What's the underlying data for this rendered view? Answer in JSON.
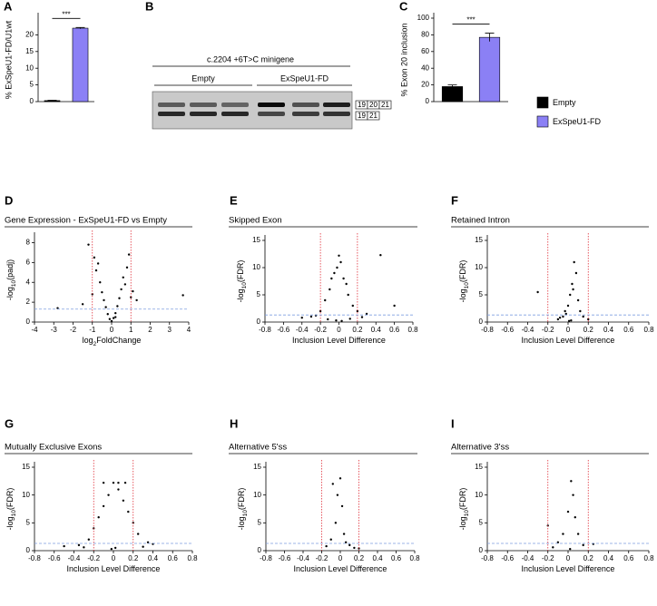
{
  "chart_data": [
    {
      "panel": "A",
      "type": "bar",
      "ylabel": "% ExSpeU1-FD/U1wt",
      "ylim": [
        0,
        25
      ],
      "yticks": [
        0,
        5,
        10,
        15,
        20
      ],
      "significance": "***",
      "series": [
        {
          "color": "#000000",
          "values": [
            0.3
          ],
          "errors": [
            0.1
          ]
        },
        {
          "color": "#8b80f5",
          "values": [
            22
          ],
          "errors": [
            0.2
          ]
        }
      ]
    },
    {
      "panel": "B",
      "type": "gel",
      "title": "c.2204 +6T>C minigene",
      "groups": [
        "Empty",
        "ExSpeU1-FD"
      ],
      "exons_top": [
        "19",
        "20",
        "21"
      ],
      "exons_bottom": [
        "19",
        "21"
      ]
    },
    {
      "panel": "C",
      "type": "bar",
      "ylabel": "% Exon 20 inclusion",
      "ylim": [
        0,
        100
      ],
      "yticks": [
        0,
        20,
        40,
        60,
        80,
        100
      ],
      "significance": "***",
      "legend": "right",
      "series": [
        {
          "name": "Empty",
          "color": "#000000",
          "values": [
            18
          ],
          "errors": [
            2
          ]
        },
        {
          "name": "ExSpeU1-FD",
          "color": "#8b80f5",
          "values": [
            77
          ],
          "errors": [
            5
          ]
        }
      ]
    },
    {
      "panel": "D",
      "type": "scatter",
      "title": "Gene Expression - ExSpeU1-FD vs Empty",
      "xlabel": [
        "log",
        "2",
        "FoldChange"
      ],
      "ylabel": [
        "-log",
        "10",
        "(padj)"
      ],
      "xlim": [
        -4,
        4
      ],
      "xticks": [
        -4,
        -3,
        -2,
        -1,
        0,
        1,
        2,
        3,
        4
      ],
      "ylim": [
        0,
        8.5
      ],
      "yticks": [
        0,
        2,
        4,
        6,
        8
      ],
      "vlines": [
        -1,
        1
      ],
      "hline": 1.3,
      "x": [
        -1.2,
        -0.9,
        -0.8,
        -0.6,
        -0.5,
        -0.4,
        -0.3,
        -0.2,
        -0.1,
        0,
        0.1,
        0.2,
        0.3,
        0.4,
        0.5,
        0.6,
        0.8,
        0.9,
        1.1,
        1.3,
        -2.8,
        3.7,
        -1.5,
        0.7,
        -0.7,
        1.0,
        -1.0,
        0.2
      ],
      "y": [
        7.8,
        6.5,
        5.2,
        4,
        3,
        2.2,
        1.5,
        0.8,
        0.3,
        0.1,
        0.4,
        0.9,
        1.6,
        2.4,
        3.3,
        4.5,
        5.5,
        6.8,
        3.1,
        2.2,
        1.4,
        2.7,
        1.8,
        3.8,
        5.9,
        2.5,
        2.8,
        0.5
      ]
    },
    {
      "panel": "E",
      "type": "scatter",
      "title": "Skipped Exon",
      "xlabel": [
        "Inclusion Level Difference"
      ],
      "ylabel": [
        "-log",
        "10",
        "(FDR)"
      ],
      "xlim": [
        -0.8,
        0.8
      ],
      "xticks": [
        -0.8,
        -0.6,
        -0.4,
        -0.2,
        0,
        0.2,
        0.4,
        0.6,
        0.8
      ],
      "ylim": [
        0,
        15
      ],
      "yticks": [
        0,
        5,
        10,
        15
      ],
      "vlines": [
        -0.2,
        0.2
      ],
      "hline": 1.3,
      "x": [
        -0.3,
        -0.2,
        -0.15,
        -0.1,
        -0.08,
        -0.05,
        -0.02,
        0,
        0.02,
        0.05,
        0.08,
        0.1,
        0.15,
        0.2,
        0.3,
        0.45,
        0.6,
        -0.4,
        -0.25,
        0.25,
        -0.12,
        0.12,
        -0.03,
        0.03
      ],
      "y": [
        1,
        2,
        4,
        6,
        8,
        9,
        10,
        12.2,
        11,
        8,
        7,
        5,
        3,
        2,
        1.5,
        12.3,
        3,
        0.8,
        1.2,
        0.9,
        0.5,
        0.6,
        0.3,
        0.2
      ]
    },
    {
      "panel": "F",
      "type": "scatter",
      "title": "Retained Intron",
      "xlabel": [
        "Inclusion Level Difference"
      ],
      "ylabel": [
        "-log",
        "10",
        "(FDR)"
      ],
      "xlim": [
        -0.8,
        0.8
      ],
      "xticks": [
        -0.8,
        -0.6,
        -0.4,
        -0.2,
        0,
        0.2,
        0.4,
        0.6,
        0.8
      ],
      "ylim": [
        0,
        15
      ],
      "yticks": [
        0,
        5,
        10,
        15
      ],
      "vlines": [
        -0.2,
        0.2
      ],
      "hline": 1.3,
      "x": [
        -0.1,
        -0.05,
        -0.03,
        0,
        0.02,
        0.04,
        0.06,
        0.08,
        0.1,
        0.12,
        -0.02,
        0.05,
        0.03,
        -0.08,
        0.15,
        0.2,
        -0.3,
        0.01
      ],
      "y": [
        0.5,
        1,
        2,
        3,
        5,
        7,
        11,
        9,
        4,
        2,
        1.5,
        6,
        0.3,
        0.8,
        1,
        0.5,
        5.5,
        0.2
      ]
    },
    {
      "panel": "G",
      "type": "scatter",
      "title": "Mutually Exclusive Exons",
      "xlabel": [
        "Inclusion Level Difference"
      ],
      "ylabel": [
        "-log",
        "10",
        "(FDR)"
      ],
      "xlim": [
        -0.8,
        0.8
      ],
      "xticks": [
        -0.8,
        -0.6,
        -0.4,
        -0.2,
        0,
        0.2,
        0.4,
        0.6,
        0.8
      ],
      "ylim": [
        0,
        15
      ],
      "yticks": [
        0,
        5,
        10,
        15
      ],
      "vlines": [
        -0.2,
        0.2
      ],
      "hline": 1.3,
      "x": [
        -0.35,
        -0.25,
        -0.2,
        -0.15,
        -0.1,
        -0.05,
        0,
        0.05,
        0.1,
        0.15,
        0.2,
        0.25,
        0.35,
        -0.5,
        0.4,
        -0.1,
        0.05,
        -0.02,
        0.02,
        0.12,
        -0.3,
        0.3
      ],
      "y": [
        1,
        2,
        4,
        6,
        8,
        10,
        12.2,
        11,
        9,
        7,
        5,
        3,
        1.5,
        0.8,
        1.2,
        12.2,
        12.2,
        0.3,
        0.5,
        12.2,
        0.6,
        0.7
      ]
    },
    {
      "panel": "H",
      "type": "scatter",
      "title": "Alternative 5'ss",
      "xlabel": [
        "Inclusion Level Difference"
      ],
      "ylabel": [
        "-log",
        "10",
        "(FDR)"
      ],
      "xlim": [
        -0.8,
        0.8
      ],
      "xticks": [
        -0.8,
        -0.6,
        -0.4,
        -0.2,
        0,
        0.2,
        0.4,
        0.6,
        0.8
      ],
      "ylim": [
        0,
        15
      ],
      "yticks": [
        0,
        5,
        10,
        15
      ],
      "vlines": [
        -0.2,
        0.2
      ],
      "hline": 1.3,
      "x": [
        -0.1,
        -0.05,
        -0.03,
        0,
        0.02,
        0.04,
        0.06,
        0.1,
        0.15,
        -0.15,
        0.2,
        -0.08
      ],
      "y": [
        2,
        5,
        10,
        13,
        8,
        3,
        1.5,
        1,
        0.5,
        0.8,
        0.4,
        12
      ]
    },
    {
      "panel": "I",
      "type": "scatter",
      "title": "Alternative 3'ss",
      "xlabel": [
        "Inclusion Level Difference"
      ],
      "ylabel": [
        "-log",
        "10",
        "(FDR)"
      ],
      "xlim": [
        -0.8,
        0.8
      ],
      "xticks": [
        -0.8,
        -0.6,
        -0.4,
        -0.2,
        0,
        0.2,
        0.4,
        0.6,
        0.8
      ],
      "ylim": [
        0,
        15
      ],
      "yticks": [
        0,
        5,
        10,
        15
      ],
      "vlines": [
        -0.2,
        0.2
      ],
      "hline": 1.3,
      "x": [
        -0.1,
        -0.05,
        0,
        0.03,
        0.05,
        0.07,
        0.1,
        0.15,
        -0.2,
        0.25,
        -0.15,
        0.02
      ],
      "y": [
        1.5,
        3,
        7,
        12.5,
        10,
        6,
        3,
        1,
        4.5,
        1.2,
        0.6,
        0.3
      ]
    }
  ]
}
